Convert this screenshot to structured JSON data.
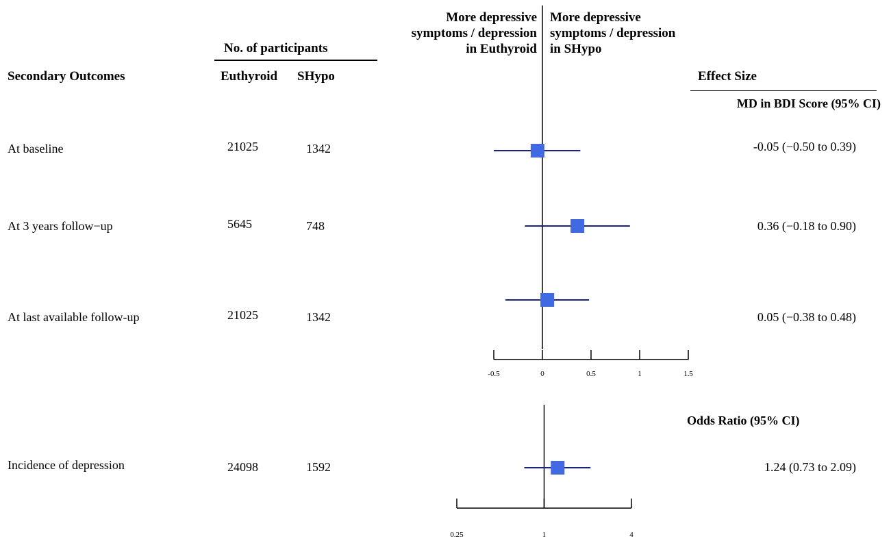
{
  "header": {
    "participants": "No. of participants",
    "outcomes": "Secondary Outcomes",
    "euthyroid": "Euthyroid",
    "shypo": "SHypo",
    "left_direction": [
      "More depressive",
      "symptoms / depression",
      "in Euthyroid"
    ],
    "right_direction": [
      "More depressive",
      "symptoms / depression",
      "in SHypo"
    ],
    "effect_size": "Effect Size"
  },
  "chart_data": [
    {
      "type": "forest",
      "section_label": "MD in BDI Score (95% CI)",
      "scale": "linear",
      "xlim": [
        -0.5,
        1.5
      ],
      "ticks": [
        "-0.5",
        "0",
        "0.5",
        "1",
        "1.5"
      ],
      "tick_values": [
        -0.5,
        0,
        0.5,
        1,
        1.5
      ],
      "null_value": 0,
      "rows": [
        {
          "label": "At baseline",
          "euthyroid": "21025",
          "shypo": "1342",
          "estimate": -0.05,
          "lower": -0.5,
          "upper": 0.39,
          "text": "-0.05 (−0.50 to 0.39)"
        },
        {
          "label": "At 3 years follow−up",
          "euthyroid": "5645",
          "shypo": "748",
          "estimate": 0.36,
          "lower": -0.18,
          "upper": 0.9,
          "text": "0.36 (−0.18 to 0.90)"
        },
        {
          "label": "At last available follow-up",
          "euthyroid": "21025",
          "shypo": "1342",
          "estimate": 0.05,
          "lower": -0.38,
          "upper": 0.48,
          "text": "0.05 (−0.38 to 0.48)"
        }
      ]
    },
    {
      "type": "forest",
      "section_label": "Odds Ratio (95% CI)",
      "scale": "log",
      "xlim": [
        0.25,
        4
      ],
      "ticks": [
        "0.25",
        "1",
        "4"
      ],
      "tick_values": [
        0.25,
        1,
        4
      ],
      "null_value": 1,
      "rows": [
        {
          "label": "Incidence of depression",
          "euthyroid": "24098",
          "shypo": "1592",
          "estimate": 1.24,
          "lower": 0.73,
          "upper": 2.09,
          "text": "1.24 (0.73 to 2.09)"
        }
      ]
    }
  ],
  "colors": {
    "marker": "#4169e1",
    "ci_line": "#1a237e",
    "axis": "#000000"
  }
}
